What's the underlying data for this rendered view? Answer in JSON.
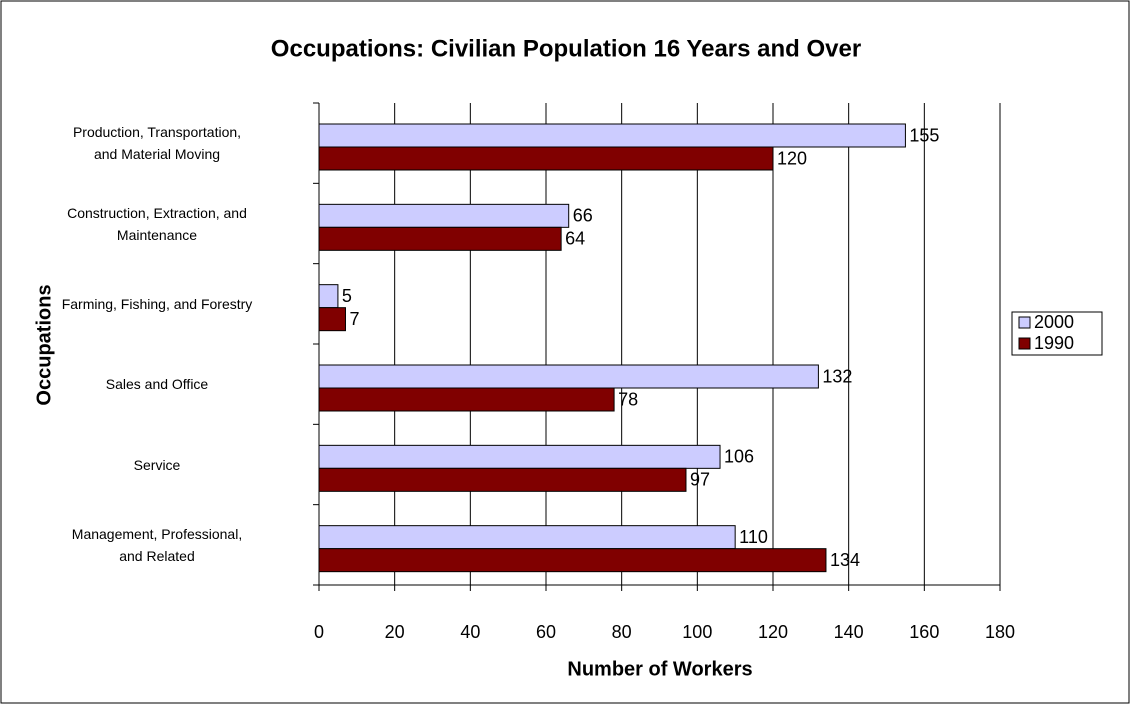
{
  "chart_data": {
    "type": "hbar",
    "title": "Occupations: Civilian Population 16 Years and Over",
    "x_label": "Number of Workers",
    "y_label": "Occupations",
    "categories": [
      "Production, Transportation,\nand Material Moving",
      "Construction, Extraction, and\nMaintenance",
      "Farming, Fishing, and Forestry",
      "Sales and Office",
      "Service",
      "Management, Professional,\nand Related"
    ],
    "series": [
      {
        "name": "2000",
        "color": "#ccccff",
        "values": [
          155,
          66,
          5,
          132,
          106,
          110
        ]
      },
      {
        "name": "1990",
        "color": "#800000",
        "values": [
          120,
          64,
          7,
          78,
          97,
          134
        ]
      }
    ],
    "xlim": [
      0,
      180
    ],
    "xticks": [
      0,
      20,
      40,
      60,
      80,
      100,
      120,
      140,
      160,
      180
    ],
    "grid": true,
    "legend": "right"
  }
}
